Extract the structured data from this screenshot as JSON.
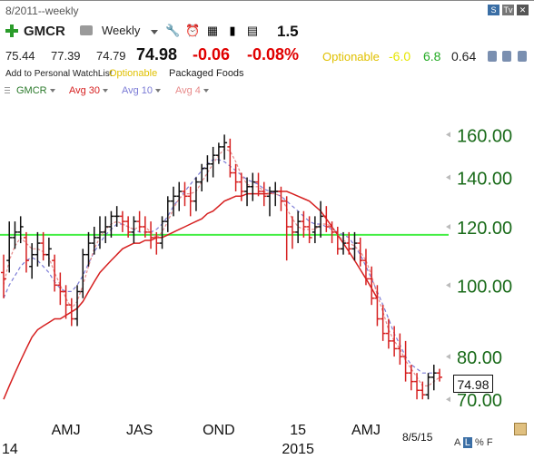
{
  "header": {
    "date_title": "8/2011--weekly",
    "symbol": "GMCR",
    "period": "Weekly",
    "value_1_5": "1.5",
    "corner_icons": [
      "s-icon",
      "tv-icon",
      "close-icon"
    ]
  },
  "quote": {
    "open": "75.44",
    "high": "77.39",
    "low": "74.79",
    "last": "74.98",
    "change": "-0.06",
    "change_pct": "-0.08%",
    "optionable": "Optionable",
    "stat1": "-6.0",
    "stat2": "6.8",
    "stat3": "0.64"
  },
  "info": {
    "watchlist": "Add to Personal WatchList",
    "optionable": "Optionable",
    "industry": "Packaged Foods"
  },
  "legend": {
    "items": [
      {
        "label": "GMCR",
        "color": "#2b7a2b"
      },
      {
        "label": "Avg 30",
        "color": "#d62020"
      },
      {
        "label": "Avg 10",
        "color": "#7b7bd6"
      },
      {
        "label": "Avg 4",
        "color": "#e78a8a"
      }
    ]
  },
  "chart_data": {
    "type": "ohlc",
    "y_ticks": [
      "160.00",
      "140.00",
      "120.00",
      "100.00",
      "80.00",
      "70.00"
    ],
    "y_tick_values": [
      160,
      140,
      120,
      100,
      80,
      70
    ],
    "ylim": [
      66,
      170
    ],
    "scale": "log",
    "x_tick_labels": [
      "AMJ",
      "JAS",
      "OND",
      "15",
      "AMJ"
    ],
    "x_tick_index": [
      11,
      24,
      38,
      52,
      64
    ],
    "year_labels": [
      "14",
      "2015"
    ],
    "year_label_index": [
      0,
      52
    ],
    "horizontal_line": {
      "value": 117,
      "color": "#44ee44"
    },
    "last_price_label": "74.98",
    "end_date": "8/5/15",
    "bars": [
      [
        104,
        110,
        96,
        102
      ],
      [
        108,
        122,
        104,
        116
      ],
      [
        116,
        122,
        112,
        118
      ],
      [
        118,
        124,
        114,
        120
      ],
      [
        116,
        118,
        104,
        108
      ],
      [
        106,
        114,
        102,
        110
      ],
      [
        110,
        118,
        106,
        114
      ],
      [
        114,
        118,
        108,
        110
      ],
      [
        110,
        116,
        106,
        112
      ],
      [
        108,
        110,
        98,
        100
      ],
      [
        100,
        104,
        94,
        98
      ],
      [
        98,
        100,
        90,
        94
      ],
      [
        94,
        96,
        88,
        90
      ],
      [
        90,
        100,
        88,
        98
      ],
      [
        98,
        112,
        96,
        110
      ],
      [
        110,
        118,
        106,
        114
      ],
      [
        114,
        120,
        110,
        116
      ],
      [
        116,
        124,
        112,
        118
      ],
      [
        118,
        124,
        114,
        120
      ],
      [
        120,
        126,
        116,
        124
      ],
      [
        124,
        128,
        120,
        124
      ],
      [
        124,
        126,
        118,
        122
      ],
      [
        122,
        124,
        116,
        118
      ],
      [
        118,
        124,
        114,
        122
      ],
      [
        122,
        126,
        118,
        120
      ],
      [
        120,
        124,
        116,
        118
      ],
      [
        118,
        122,
        112,
        116
      ],
      [
        116,
        118,
        110,
        114
      ],
      [
        114,
        124,
        112,
        122
      ],
      [
        122,
        132,
        118,
        130
      ],
      [
        130,
        136,
        124,
        132
      ],
      [
        132,
        138,
        126,
        134
      ],
      [
        134,
        138,
        128,
        132
      ],
      [
        132,
        136,
        124,
        130
      ],
      [
        130,
        140,
        126,
        138
      ],
      [
        138,
        146,
        134,
        144
      ],
      [
        144,
        150,
        138,
        146
      ],
      [
        146,
        154,
        140,
        150
      ],
      [
        150,
        156,
        146,
        154
      ],
      [
        154,
        160,
        148,
        156
      ],
      [
        154,
        158,
        140,
        142
      ],
      [
        142,
        146,
        134,
        138
      ],
      [
        138,
        142,
        130,
        134
      ],
      [
        134,
        140,
        128,
        136
      ],
      [
        136,
        142,
        130,
        138
      ],
      [
        138,
        142,
        132,
        134
      ],
      [
        134,
        138,
        128,
        132
      ],
      [
        132,
        136,
        124,
        134
      ],
      [
        134,
        138,
        128,
        134
      ],
      [
        134,
        136,
        126,
        130
      ],
      [
        130,
        132,
        108,
        120
      ],
      [
        120,
        124,
        112,
        118
      ],
      [
        118,
        126,
        114,
        122
      ],
      [
        122,
        126,
        116,
        120
      ],
      [
        120,
        124,
        114,
        116
      ],
      [
        118,
        124,
        114,
        120
      ],
      [
        120,
        130,
        116,
        124
      ],
      [
        124,
        128,
        118,
        120
      ],
      [
        120,
        122,
        114,
        118
      ],
      [
        118,
        120,
        110,
        112
      ],
      [
        112,
        118,
        110,
        114
      ],
      [
        114,
        118,
        110,
        112
      ],
      [
        112,
        118,
        108,
        114
      ],
      [
        114,
        116,
        106,
        108
      ],
      [
        108,
        112,
        100,
        102
      ],
      [
        102,
        106,
        94,
        96
      ],
      [
        96,
        100,
        88,
        90
      ],
      [
        90,
        94,
        84,
        86
      ],
      [
        86,
        90,
        82,
        84
      ],
      [
        84,
        88,
        80,
        82
      ],
      [
        82,
        86,
        78,
        80
      ],
      [
        80,
        84,
        74,
        76
      ],
      [
        76,
        78,
        72,
        74
      ],
      [
        74,
        76,
        70,
        72
      ],
      [
        72,
        74,
        70,
        71
      ],
      [
        71,
        76,
        70,
        75
      ],
      [
        75,
        78,
        72,
        76
      ],
      [
        76,
        77,
        74,
        75
      ]
    ],
    "avg30": [
      70,
      73,
      76,
      79,
      82,
      85,
      87,
      88,
      89,
      90,
      90,
      91,
      92,
      93,
      95,
      98,
      101,
      104,
      106,
      108,
      110,
      112,
      113,
      114,
      114,
      115,
      115,
      116,
      116,
      117,
      118,
      119,
      120,
      121,
      122,
      123,
      125,
      126,
      128,
      130,
      131,
      132,
      132,
      133,
      133,
      133,
      133,
      133,
      134,
      134,
      134,
      133,
      132,
      131,
      130,
      128,
      126,
      123,
      120,
      117,
      114,
      111,
      108,
      105,
      102,
      99,
      96
    ],
    "avg10": [
      96,
      100,
      103,
      106,
      108,
      109,
      108,
      106,
      104,
      101,
      99,
      98,
      98,
      100,
      103,
      107,
      111,
      114,
      117,
      119,
      121,
      121,
      120,
      119,
      118,
      118,
      118,
      119,
      121,
      124,
      128,
      131,
      134,
      137,
      140,
      143,
      146,
      148,
      148,
      147,
      145,
      143,
      141,
      139,
      138,
      137,
      135,
      134,
      133,
      132,
      130,
      128,
      126,
      124,
      122,
      121,
      121,
      120,
      119,
      118,
      117,
      116,
      113,
      110,
      106,
      102,
      98,
      94,
      90,
      86,
      83,
      80,
      78,
      77,
      76,
      76,
      76
    ],
    "avg4": [
      100,
      108,
      113,
      116,
      114,
      112,
      112,
      111,
      109,
      104,
      100,
      96,
      93,
      95,
      100,
      106,
      112,
      116,
      119,
      121,
      122,
      121,
      120,
      119,
      120,
      120,
      118,
      116,
      118,
      122,
      127,
      131,
      133,
      133,
      134,
      138,
      142,
      146,
      150,
      153,
      152,
      147,
      141,
      137,
      136,
      136,
      134,
      133,
      133,
      132,
      127,
      123,
      120,
      119,
      119,
      119,
      121,
      121,
      120,
      117,
      115,
      114,
      113,
      111,
      108,
      103,
      97,
      92,
      87,
      84,
      82,
      79,
      77,
      75,
      73,
      73,
      74,
      75
    ]
  }
}
